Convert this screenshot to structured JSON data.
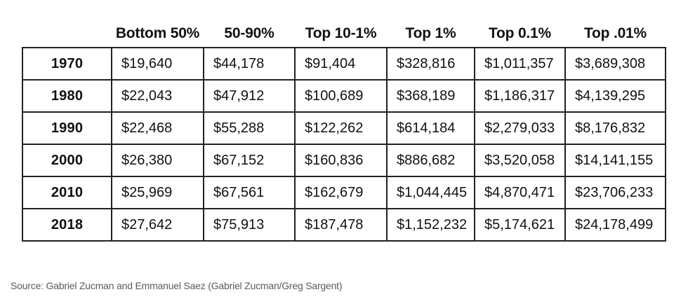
{
  "colors": {
    "background": "#ffffff",
    "table_border": "#222222",
    "table_text": "#111111",
    "source_text": "#5a5a5a"
  },
  "chart_data": {
    "type": "table",
    "title": "",
    "columns": [
      "",
      "Bottom 50%",
      "50-90%",
      "Top 10-1%",
      "Top 1%",
      "Top 0.1%",
      "Top .01%"
    ],
    "rows": [
      [
        "1970",
        "$19,640",
        "$44,178",
        "$91,404",
        "$328,816",
        "$1,011,357",
        "$3,689,308"
      ],
      [
        "1980",
        "$22,043",
        "$47,912",
        "$100,689",
        "$368,189",
        "$1,186,317",
        "$4,139,295"
      ],
      [
        "1990",
        "$22,468",
        "$55,288",
        "$122,262",
        "$614,184",
        "$2,279,033",
        "$8,176,832"
      ],
      [
        "2000",
        "$26,380",
        "$67,152",
        "$160,836",
        "$886,682",
        "$3,520,058",
        "$14,141,155"
      ],
      [
        "2010",
        "$25,969",
        "$67,561",
        "$162,679",
        "$1,044,445",
        "$4,870,471",
        "$23,706,233"
      ],
      [
        "2018",
        "$27,642",
        "$75,913",
        "$187,478",
        "$1,152,232",
        "$5,174,621",
        "$24,178,499"
      ]
    ],
    "source": "Source: Gabriel Zucman and Emmanuel Saez (Gabriel Zucman/Greg Sargent)"
  }
}
